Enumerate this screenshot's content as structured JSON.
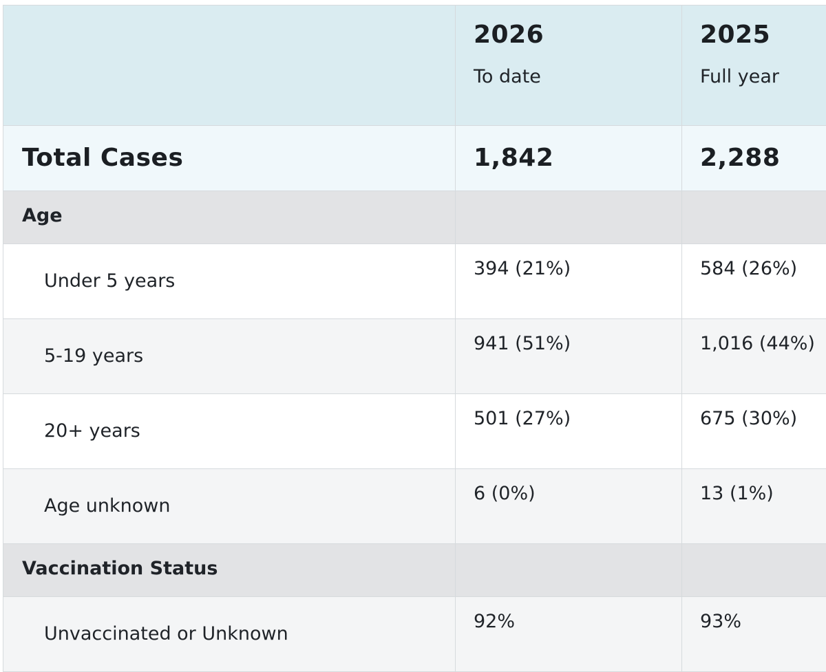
{
  "header": {
    "columns": [
      {
        "year": "2026",
        "sub": "To date"
      },
      {
        "year": "2025",
        "sub": "Full year"
      }
    ]
  },
  "total": {
    "label": "Total Cases",
    "values": [
      "1,842",
      "2,288"
    ]
  },
  "sections": [
    {
      "title": "Age",
      "rows": [
        {
          "label": "Under 5 years",
          "values": [
            "394 (21%)",
            "584 (26%)"
          ]
        },
        {
          "label": "5-19 years",
          "values": [
            "941 (51%)",
            "1,016 (44%)"
          ]
        },
        {
          "label": "20+ years",
          "values": [
            "501 (27%)",
            "675 (30%)"
          ]
        },
        {
          "label": "Age unknown",
          "values": [
            "6 (0%)",
            "13 (1%)"
          ]
        }
      ]
    },
    {
      "title": "Vaccination Status",
      "rows": [
        {
          "label": "Unvaccinated or Unknown",
          "values": [
            "92%",
            "93%"
          ]
        }
      ]
    }
  ]
}
